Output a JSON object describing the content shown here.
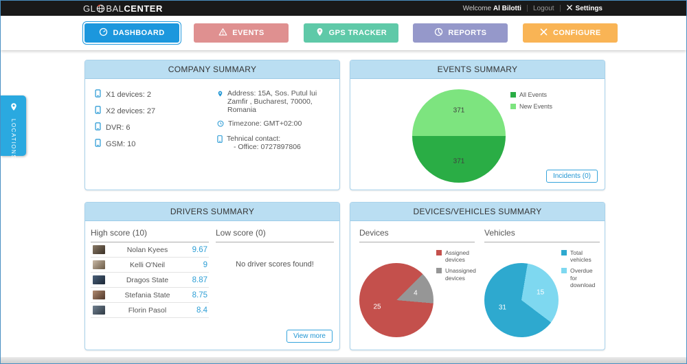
{
  "topbar": {
    "logo_part1": "GL",
    "logo_part2": "BAL",
    "logo_part3": "CENTER",
    "welcome": "Welcome",
    "username": "Al Bilotti",
    "logout": "Logout",
    "settings": "Settings"
  },
  "nav": {
    "tabs": [
      {
        "label": "DASHBOARD",
        "color": "#1c97dd",
        "active": true
      },
      {
        "label": "EVENTS",
        "color": "#df9090",
        "active": false
      },
      {
        "label": "GPS TRACKER",
        "color": "#5fc9a8",
        "active": false
      },
      {
        "label": "REPORTS",
        "color": "#9598ca",
        "active": false
      },
      {
        "label": "CONFIGURE",
        "color": "#f9b455",
        "active": false
      }
    ]
  },
  "locations_tab": {
    "label": "LOCATIONS"
  },
  "company": {
    "title": "COMPANY SUMMARY",
    "devices": [
      {
        "label": "X1 devices: 2"
      },
      {
        "label": "X2 devices: 27"
      },
      {
        "label": "DVR: 6"
      },
      {
        "label": "GSM: 10"
      }
    ],
    "address": "Address: 15A, Sos. Putul lui Zamfir , Bucharest, 70000, Romania",
    "timezone": "Timezone: GMT+02:00",
    "contact_line1": "Tehnical contact:",
    "contact_line2": "- Office: 0727897806"
  },
  "events": {
    "title": "EVENTS SUMMARY",
    "incidents_button": "Incidents (0)"
  },
  "drivers": {
    "title": "DRIVERS SUMMARY",
    "high_header": "High score (10)",
    "low_header": "Low score (0)",
    "high_scores": [
      {
        "name": "Nolan Kyees",
        "score": "9.67"
      },
      {
        "name": "Kelli O'Neil",
        "score": "9"
      },
      {
        "name": "Dragos State",
        "score": "8.87"
      },
      {
        "name": "Stefania State",
        "score": "8.75"
      },
      {
        "name": "Florin Pasol",
        "score": "8.4"
      }
    ],
    "low_empty": "No driver scores found!",
    "view_more": "View more"
  },
  "devices_vehicles": {
    "title": "DEVICES/VEHICLES SUMMARY",
    "devices_header": "Devices",
    "vehicles_header": "Vehicles"
  },
  "chart_data": [
    {
      "type": "pie",
      "title": "Events summary",
      "labels": [
        "All Events",
        "New Events"
      ],
      "values": [
        371,
        371
      ],
      "colors": [
        "#2aad45",
        "#7de47f"
      ],
      "start_angle": 90,
      "label_color": "#3f3f3f",
      "legend_position": "top-right"
    },
    {
      "type": "pie",
      "title": "Devices",
      "labels": [
        "Assigned devices",
        "Unassigned devices"
      ],
      "values": [
        25,
        4
      ],
      "colors": [
        "#c4504c",
        "#969696"
      ],
      "start_angle": 95,
      "label_color": "#ffffff",
      "legend_position": "right"
    },
    {
      "type": "pie",
      "title": "Vehicles",
      "labels": [
        "Total vehicles",
        "Overdue for download"
      ],
      "values": [
        31,
        15
      ],
      "colors": [
        "#2ea9cf",
        "#7ed8f0"
      ],
      "start_angle": 127,
      "label_color": "#ffffff",
      "legend_position": "right"
    }
  ]
}
